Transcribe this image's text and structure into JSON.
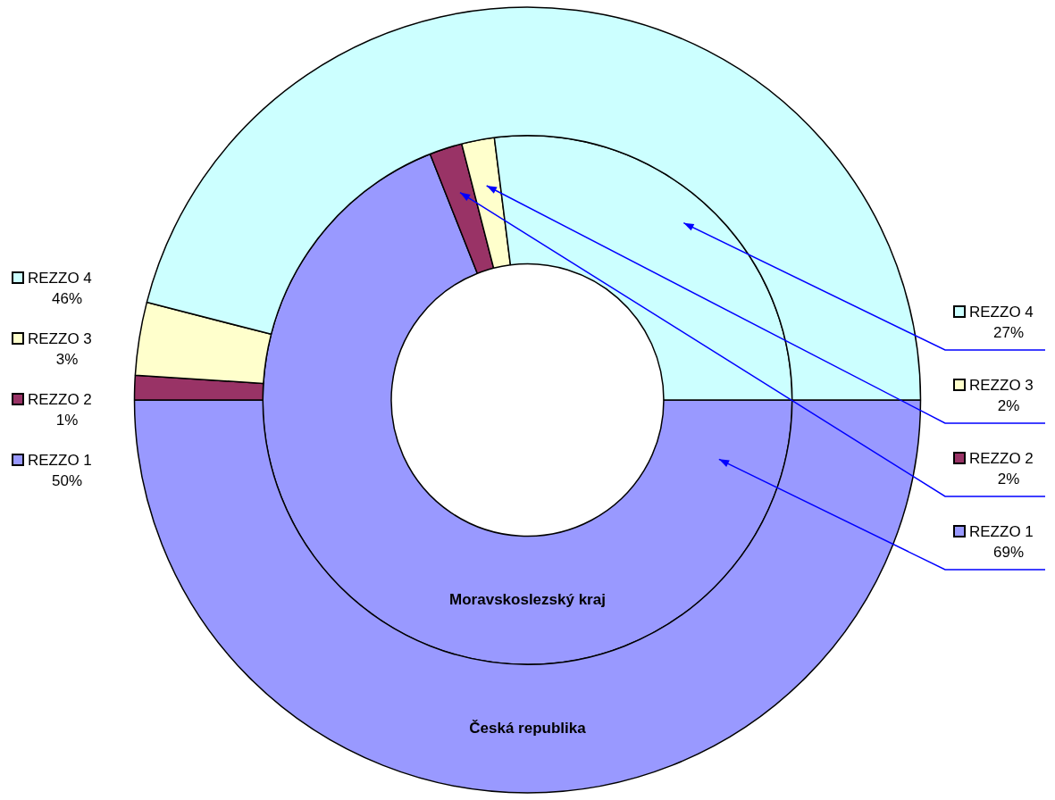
{
  "chart_data": {
    "type": "donut",
    "categories": [
      "REZZO 1",
      "REZZO 2",
      "REZZO 3",
      "REZZO 4"
    ],
    "colors": [
      "#9999ff",
      "#993366",
      "#ffffcc",
      "#ccffff"
    ],
    "series": [
      {
        "name": "Česká republika",
        "values": [
          50,
          1,
          3,
          46
        ],
        "value_labels": [
          "50%",
          "1%",
          "3%",
          "46%"
        ]
      },
      {
        "name": "Moravskoslezský kraj",
        "values": [
          69,
          2,
          2,
          27
        ],
        "value_labels": [
          "69%",
          "2%",
          "2%",
          "27%"
        ]
      }
    ],
    "legend": "left"
  }
}
